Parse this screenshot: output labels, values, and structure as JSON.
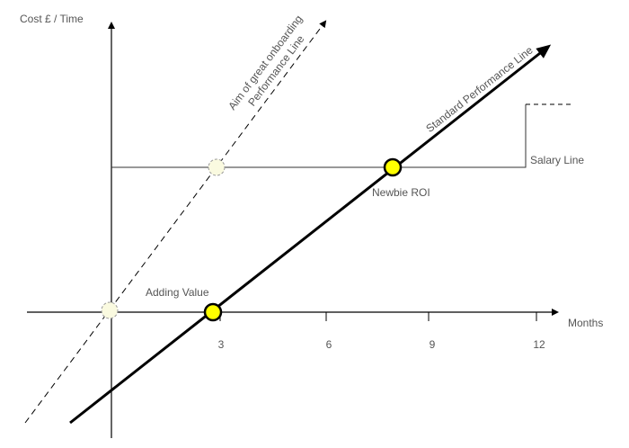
{
  "axes": {
    "y_label": "Cost £ / Time",
    "x_label": "Months",
    "x_ticks": [
      "3",
      "6",
      "9",
      "12"
    ]
  },
  "lines": {
    "salary": "Salary Line",
    "standard": "Standard Performance Line",
    "onboarding": [
      "Aim of great onboarding",
      "Performance Line"
    ]
  },
  "points": {
    "newbie_roi": "Newbie ROI",
    "adding_value": "Adding Value"
  }
}
